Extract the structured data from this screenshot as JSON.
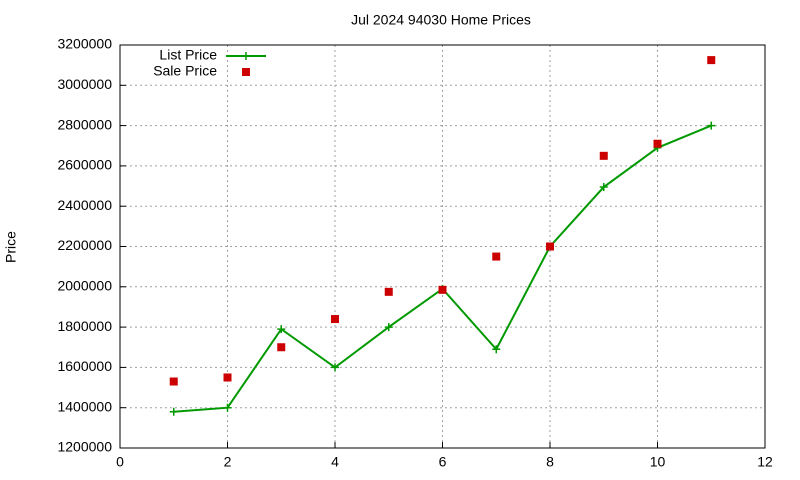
{
  "chart_data": {
    "type": "line",
    "title": "Jul 2024 94030 Home Prices",
    "y_label": "Price",
    "x": [
      1,
      2,
      3,
      4,
      5,
      6,
      7,
      8,
      9,
      10,
      11
    ],
    "series": [
      {
        "name": "List Price",
        "color": "#009900",
        "style": "line-points",
        "values": [
          1380000,
          1400000,
          1790000,
          1600000,
          1800000,
          1990000,
          1690000,
          2200000,
          2495000,
          2690000,
          2800000
        ]
      },
      {
        "name": "Sale Price",
        "color": "#cc0000",
        "style": "points",
        "values": [
          1530000,
          1550000,
          1700000,
          1840000,
          1975000,
          1985000,
          2150000,
          2200000,
          2650000,
          2710000,
          3125000
        ]
      }
    ],
    "xlim": [
      0,
      12
    ],
    "xticks": [
      0,
      2,
      4,
      6,
      8,
      10,
      12
    ],
    "ylim": [
      1200000,
      3200000
    ],
    "yticks": [
      1200000,
      1400000,
      1600000,
      1800000,
      2000000,
      2200000,
      2400000,
      2600000,
      2800000,
      3000000,
      3200000
    ],
    "grid": true,
    "legend": "top-left"
  }
}
